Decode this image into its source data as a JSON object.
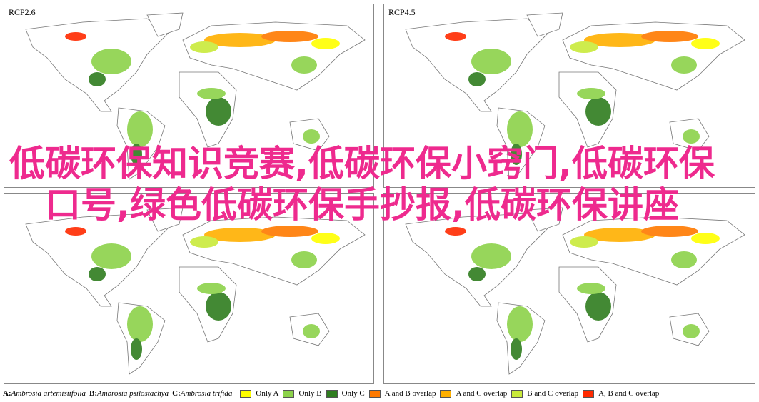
{
  "panels": [
    {
      "label": "RCP2.6"
    },
    {
      "label": "RCP4.5"
    },
    {
      "label": null
    },
    {
      "label": null
    }
  ],
  "overlay_text": "低碳环保知识竞赛,低碳环保小窍门,低碳环保口号,绿色低碳环保手抄报,低碳环保讲座",
  "legend": {
    "species": [
      {
        "letter": "A:",
        "name": "Ambrosia artemisiifolia"
      },
      {
        "letter": "B:",
        "name": "Ambrosia psilostachya"
      },
      {
        "letter": "C:",
        "name": "Ambrosia trifida"
      }
    ],
    "classes": [
      {
        "label": "Only A",
        "color": "#ffff00"
      },
      {
        "label": "Only B",
        "color": "#8cd24a"
      },
      {
        "label": "Only C",
        "color": "#2f7d1f"
      },
      {
        "label": "A and B overlap",
        "color": "#ff7a00"
      },
      {
        "label": "A and C overlap",
        "color": "#ffb000"
      },
      {
        "label": "B and C overlap",
        "color": "#c9ea3a"
      },
      {
        "label": "A, B and C overlap",
        "color": "#ff2a00"
      }
    ]
  }
}
